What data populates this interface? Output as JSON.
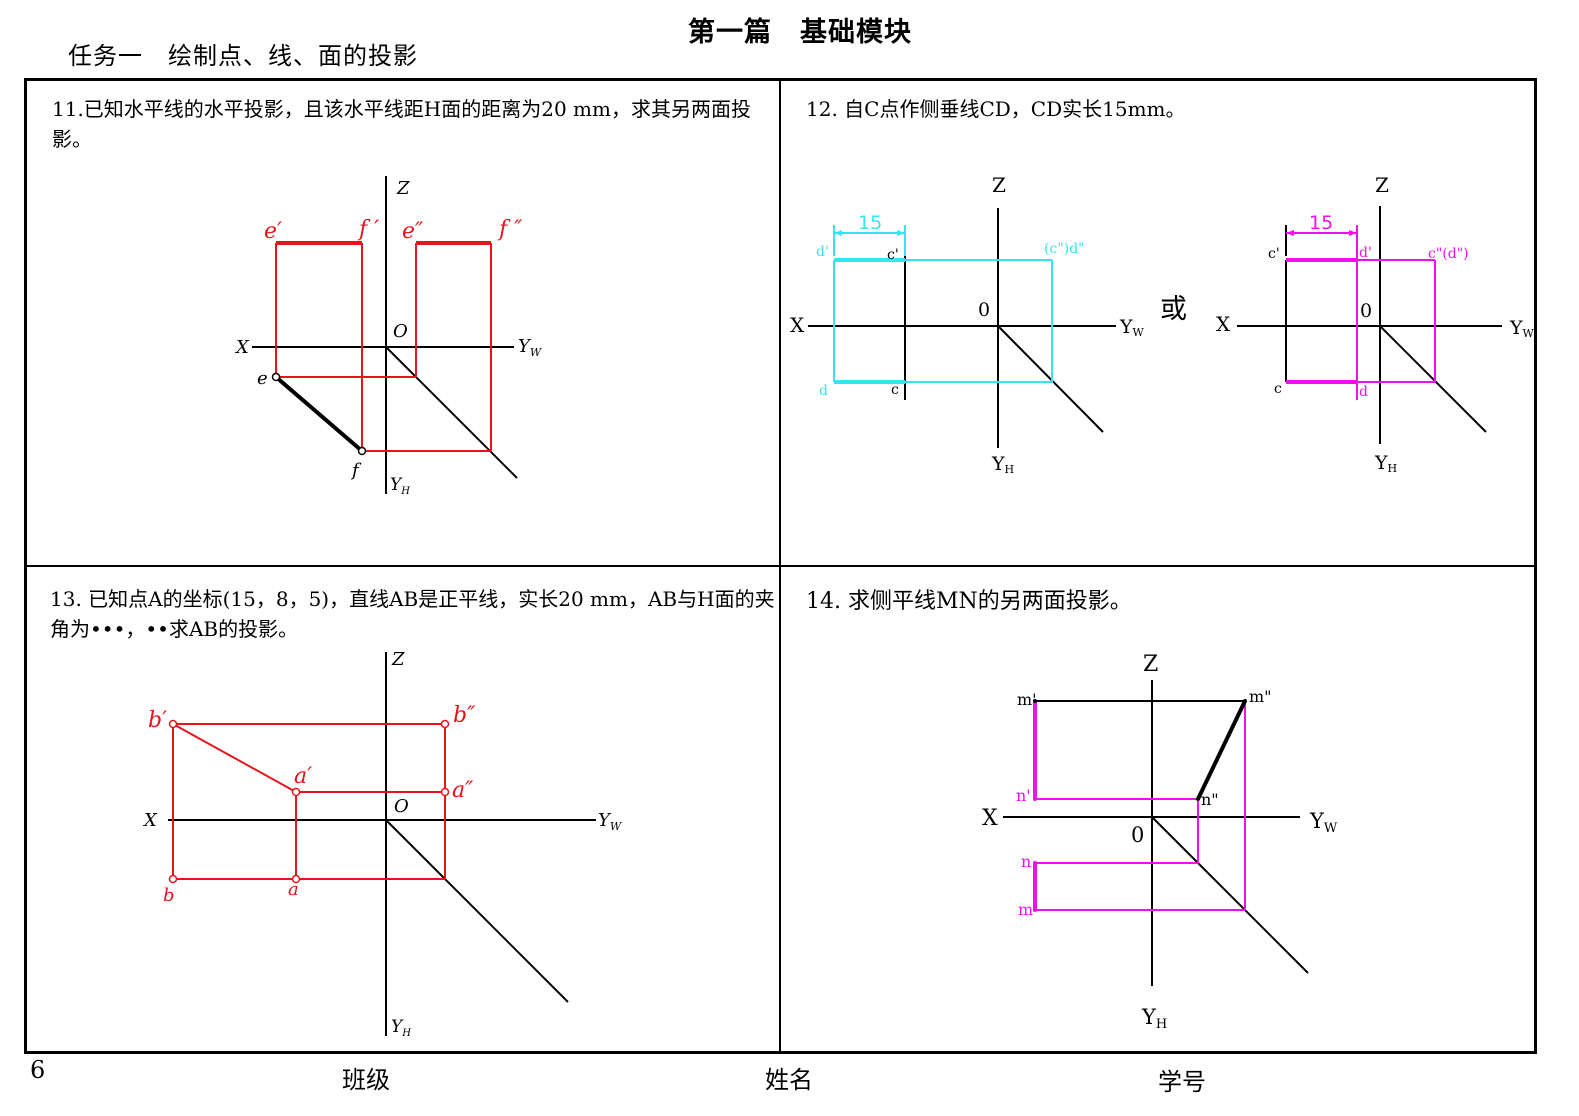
{
  "header": {
    "title": "第一篇　基础模块",
    "task": "任务一　绘制点、线、面的投影"
  },
  "problems": {
    "p11": {
      "text": "11.已知水平线的水平投影，且该水平线距H面的距离为20 mm，求其另两面投影。",
      "labels": {
        "z": "Z",
        "x": "X",
        "o": "O",
        "yw": "Y",
        "yw_sub": "W",
        "yh": "Y",
        "yh_sub": "H",
        "e1": "e′",
        "f1": "f ′",
        "e2": "e″",
        "f2": "f ″",
        "e": "e",
        "f": "f"
      }
    },
    "p12": {
      "text": "12. 自C点作侧垂线CD，CD实长15mm。",
      "or": "或",
      "left": {
        "z": "Z",
        "x": "X",
        "o": "0",
        "yw": "Y",
        "yw_sub": "W",
        "yh": "Y",
        "yh_sub": "H",
        "dim": "15",
        "d1": "d'",
        "c1": "c'",
        "cd2": "(c\")d\"",
        "d": "d",
        "c": "c"
      },
      "right": {
        "z": "Z",
        "x": "X",
        "o": "0",
        "yw": "Y",
        "yw_sub": "W",
        "yh": "Y",
        "yh_sub": "H",
        "dim": "15",
        "c1": "c'",
        "d1": "d'",
        "cd2": "c\"(d\")",
        "c": "c",
        "d": "d"
      }
    },
    "p13": {
      "text": "13. 已知点A的坐标(15，8，5)，直线AB是正平线，实长20 mm，AB与H面的夹角为•••，••求AB的投影。",
      "labels": {
        "z": "Z",
        "x": "X",
        "o": "O",
        "yw": "Y",
        "yw_sub": "W",
        "yh": "Y",
        "yh_sub": "H",
        "b1": "b′",
        "a1": "a′",
        "b2": "b″",
        "a2": "a″",
        "b": "b",
        "a": "a"
      }
    },
    "p14": {
      "text": "14. 求侧平线MN的另两面投影。",
      "labels": {
        "z": "Z",
        "x": "X",
        "o": "0",
        "yw": "Y",
        "yw_sub": "W",
        "yh": "Y",
        "yh_sub": "H",
        "m1": "m'",
        "m2": "m\"",
        "n1": "n'",
        "n2": "n\"",
        "n": "n",
        "m": "m"
      }
    }
  },
  "footer": {
    "page_number": "6",
    "class_label": "班级",
    "name_label": "姓名",
    "id_label": "学号"
  },
  "colors": {
    "black": "#000000",
    "red": "#e8141b",
    "cyan": "#33e6f0",
    "magenta": "#ee10ee"
  }
}
